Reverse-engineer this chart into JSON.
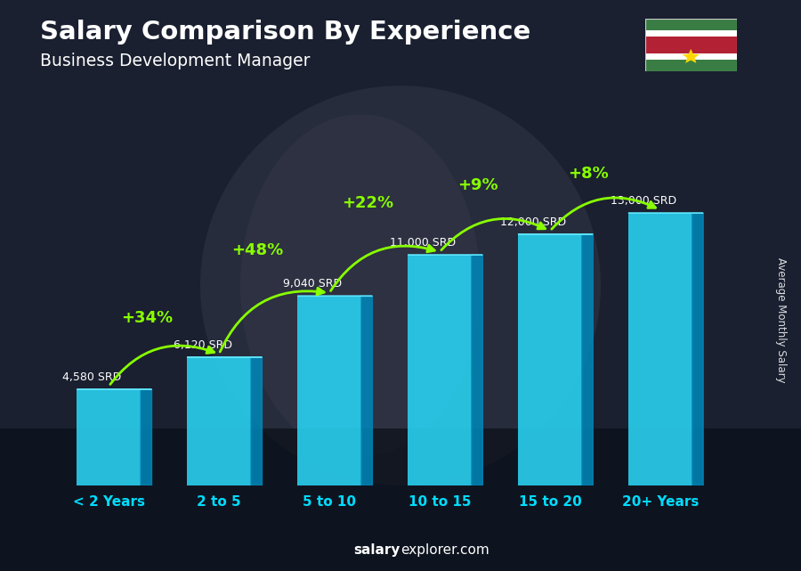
{
  "title": "Salary Comparison By Experience",
  "subtitle": "Business Development Manager",
  "categories": [
    "< 2 Years",
    "2 to 5",
    "5 to 10",
    "10 to 15",
    "15 to 20",
    "20+ Years"
  ],
  "values": [
    4580,
    6120,
    9040,
    11000,
    12000,
    13000
  ],
  "labels": [
    "4,580 SRD",
    "6,120 SRD",
    "9,040 SRD",
    "11,000 SRD",
    "12,000 SRD",
    "13,000 SRD"
  ],
  "pct_changes": [
    "+34%",
    "+48%",
    "+22%",
    "+9%",
    "+8%"
  ],
  "bar_front_color": "#29d0f0",
  "bar_side_color": "#0088bb",
  "bar_top_color": "#60e8ff",
  "title_color": "#ffffff",
  "subtitle_color": "#ffffff",
  "label_color": "#ffffff",
  "pct_color": "#88ff00",
  "xticklabel_color": "#00ddff",
  "footer_salary_color": "#ffffff",
  "footer_explorer_color": "#aaddff",
  "ylabel_text": "Average Monthly Salary",
  "footer_bold": "salary",
  "footer_normal": "explorer.com",
  "ylim_max": 15000,
  "suriname_flag_green": "#3A7D44",
  "suriname_flag_white": "#FFFFFF",
  "suriname_flag_red": "#B22234",
  "suriname_flag_star": "#FFD700",
  "bg_color": "#1c2333",
  "bg_photo_colors": [
    "#1a1f2e",
    "#2a3040",
    "#3a3a40"
  ],
  "arrow_color": "#88ff00",
  "arrow_rad": -0.4
}
